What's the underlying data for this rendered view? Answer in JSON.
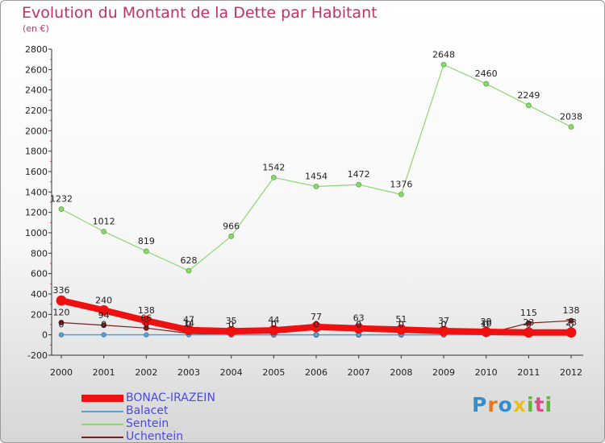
{
  "header": {
    "title": "Evolution du Montant de la Dette par Habitant",
    "subtitle": "(en €)"
  },
  "logo": {
    "text": "Proxiti",
    "letters": [
      {
        "char": "P",
        "color": "#2f8fd0"
      },
      {
        "char": "r",
        "color": "#e07b20"
      },
      {
        "char": "o",
        "color": "#2f8fd0"
      },
      {
        "char": "x",
        "color": "#e8c020"
      },
      {
        "char": "i",
        "color": "#5fb83a"
      },
      {
        "char": "t",
        "color": "#d84c8a"
      },
      {
        "char": "i",
        "color": "#5fb83a"
      }
    ]
  },
  "chart_data": {
    "type": "line",
    "x": [
      "2000",
      "2001",
      "2002",
      "2003",
      "2004",
      "2005",
      "2006",
      "2007",
      "2008",
      "2009",
      "2010",
      "2011",
      "2012"
    ],
    "ylim": [
      -200,
      2800
    ],
    "yticks": [
      "-200",
      "0",
      "200",
      "400",
      "600",
      "800",
      "1000",
      "1200",
      "1400",
      "1600",
      "1800",
      "2000",
      "2200",
      "2400",
      "2600",
      "2800"
    ],
    "grid": false,
    "legend_position": "bottom-left",
    "series": [
      {
        "name": "BONAC-IRAZEIN",
        "color": "#ee1111",
        "values": [
          336,
          240,
          138,
          47,
          35,
          44,
          77,
          63,
          51,
          37,
          29,
          23,
          23
        ],
        "labels": [
          "336",
          "240",
          "138",
          "47",
          "35",
          "44",
          "77",
          "63",
          "51",
          "37",
          "29",
          "23",
          "23"
        ]
      },
      {
        "name": "Balacet",
        "color": "#5a9fd0",
        "values": [
          0,
          0,
          0,
          0,
          0,
          0,
          0,
          0,
          0,
          0,
          0,
          0,
          0
        ],
        "labels": [
          "0",
          "0",
          "0",
          "0",
          "0",
          "0",
          "0",
          "0",
          "0",
          "0",
          "0",
          "0",
          "0"
        ]
      },
      {
        "name": "Sentein",
        "color": "#8ad870",
        "values": [
          1232,
          1012,
          819,
          628,
          966,
          1542,
          1454,
          1472,
          1376,
          2648,
          2460,
          2249,
          2038
        ],
        "labels": [
          "1232",
          "1012",
          "819",
          "628",
          "966",
          "1542",
          "1454",
          "1472",
          "1376",
          "2648",
          "2460",
          "2249",
          "2038"
        ]
      },
      {
        "name": "Uchentein",
        "color": "#7a1f1f",
        "values": [
          120,
          94,
          66,
          14,
          0,
          0,
          0,
          0,
          0,
          0,
          10,
          115,
          138
        ],
        "labels": [
          "120",
          "94",
          "66",
          "14",
          "0",
          "0",
          "0",
          "0",
          "0",
          "0",
          "10",
          "115",
          "138"
        ]
      }
    ]
  }
}
